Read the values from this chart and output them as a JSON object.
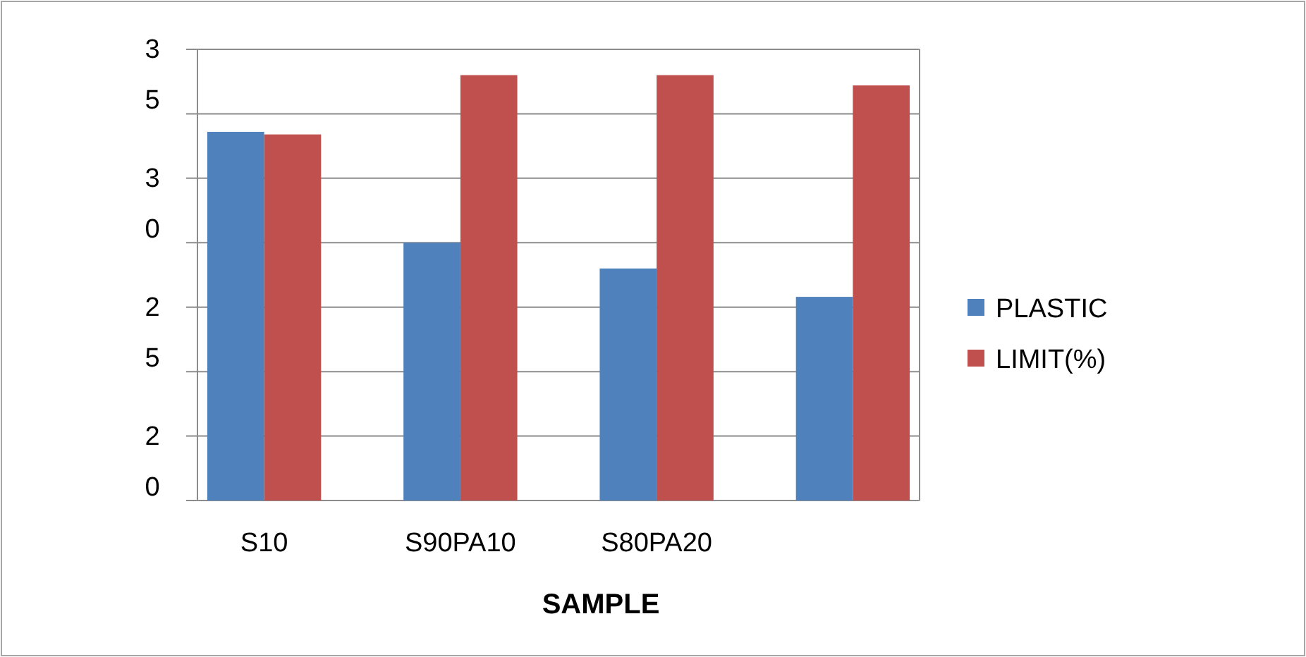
{
  "chart_data": {
    "type": "bar",
    "xlabel": "SAMPLE",
    "categories": [
      "S10",
      "S90PA10",
      "S80PA20",
      null
    ],
    "series": [
      {
        "name": "PLASTIC",
        "color": "#4f81bd",
        "values": [
          31.8,
          27.5,
          26.5,
          25.4
        ]
      },
      {
        "name": "LIMIT(%)",
        "color": "#c0504d",
        "values": [
          31.7,
          34.0,
          34.0,
          33.6
        ]
      }
    ],
    "ylim": [
      17.5,
      35
    ],
    "yticks": [
      {
        "value": 17.5,
        "label": null
      },
      20,
      {
        "value": 22.5,
        "label": null
      },
      25,
      {
        "value": 27.5,
        "label": null
      },
      30,
      {
        "value": 32.5,
        "label": null
      },
      35
    ],
    "grid": "y",
    "legend": "right"
  }
}
